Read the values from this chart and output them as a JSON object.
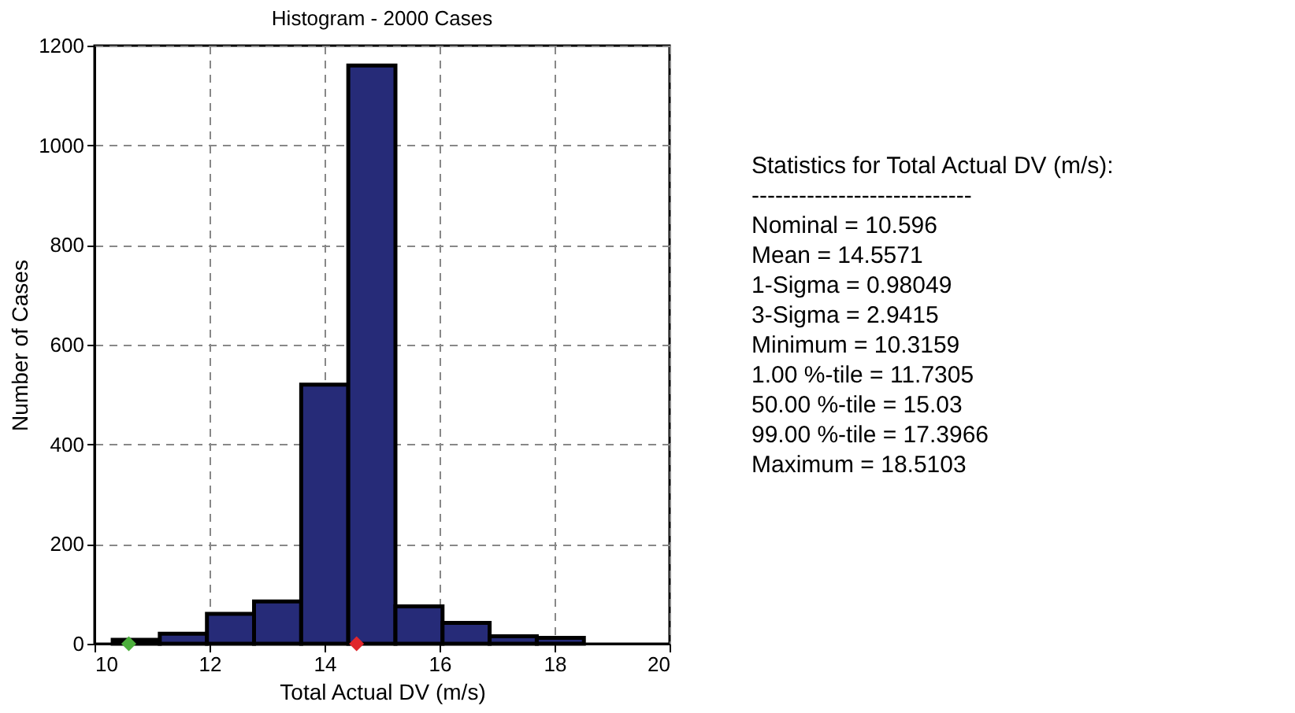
{
  "chart_data": {
    "type": "histogram",
    "title": "Histogram - 2000 Cases",
    "xlabel": "Total Actual DV (m/s)",
    "ylabel": "Number of Cases",
    "bins": [
      10.316,
      11.135,
      11.955,
      12.774,
      13.594,
      14.413,
      15.233,
      16.052,
      16.871,
      17.691,
      18.51
    ],
    "values": [
      8,
      20,
      60,
      85,
      520,
      1160,
      75,
      42,
      15,
      12
    ],
    "color": "#262b78",
    "xlim": [
      10,
      20
    ],
    "xticks": [
      10,
      12,
      14,
      16,
      18,
      20
    ],
    "ylim": [
      0,
      1200
    ],
    "yticks": [
      0,
      200,
      400,
      600,
      800,
      1000,
      1200
    ],
    "grid": true,
    "series": [
      {
        "type": "scatter",
        "marker": "diamond",
        "color": "#4caf3c",
        "x": [
          10.596
        ],
        "values": [
          0
        ]
      },
      {
        "type": "scatter",
        "marker": "diamond",
        "color": "#e0262c",
        "x": [
          14.5571
        ],
        "values": [
          0
        ]
      }
    ],
    "annotations": [
      "Statistics for Total Actual DV (m/s):",
      "----------------------------",
      "Nominal = 10.596",
      "Mean = 14.5571",
      "1-Sigma = 0.98049",
      "3-Sigma = 2.9415",
      "Minimum = 10.3159",
      "1.00 %-tile = 11.7305",
      "50.00 %-tile = 15.03",
      "99.00 %-tile = 17.3966",
      "Maximum = 18.5103"
    ]
  }
}
